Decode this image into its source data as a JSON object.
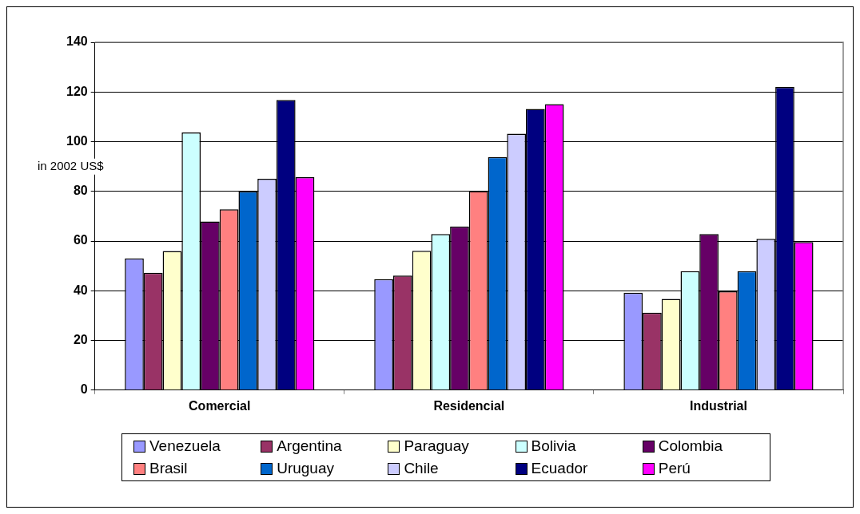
{
  "chart_data": {
    "type": "bar",
    "ylabel": "in 2002 US$",
    "categories": [
      "Comercial",
      "Residencial",
      "Industrial"
    ],
    "ylim": [
      0,
      140
    ],
    "yticks": [
      0,
      20,
      40,
      60,
      80,
      100,
      120,
      140
    ],
    "grid": "y",
    "legend": "bottom",
    "series": [
      {
        "name": "Venezuela",
        "color": "#9999ff",
        "values": [
          53,
          44.7,
          39.2
        ]
      },
      {
        "name": "Argentina",
        "color": "#993366",
        "values": [
          47.2,
          46.1,
          31.2
        ]
      },
      {
        "name": "Paraguay",
        "color": "#ffffcc",
        "values": [
          56,
          56.1,
          36.7
        ]
      },
      {
        "name": "Bolivia",
        "color": "#ccffff",
        "values": [
          103.7,
          62.8,
          47.9
        ]
      },
      {
        "name": "Colombia",
        "color": "#660066",
        "values": [
          67.9,
          65.9,
          62.8
        ]
      },
      {
        "name": "Brasil",
        "color": "#ff8080",
        "values": [
          72.8,
          80.1,
          39.8
        ]
      },
      {
        "name": "Uruguay",
        "color": "#0066cc",
        "values": [
          80,
          93.8,
          47.9
        ]
      },
      {
        "name": "Chile",
        "color": "#ccccff",
        "values": [
          85.1,
          103.2,
          60.9
        ]
      },
      {
        "name": "Ecuador",
        "color": "#000080",
        "values": [
          116.8,
          113.2,
          122
        ]
      },
      {
        "name": "Perú",
        "color": "#ff00ff",
        "values": [
          85.7,
          115.1,
          59.6
        ]
      }
    ]
  }
}
